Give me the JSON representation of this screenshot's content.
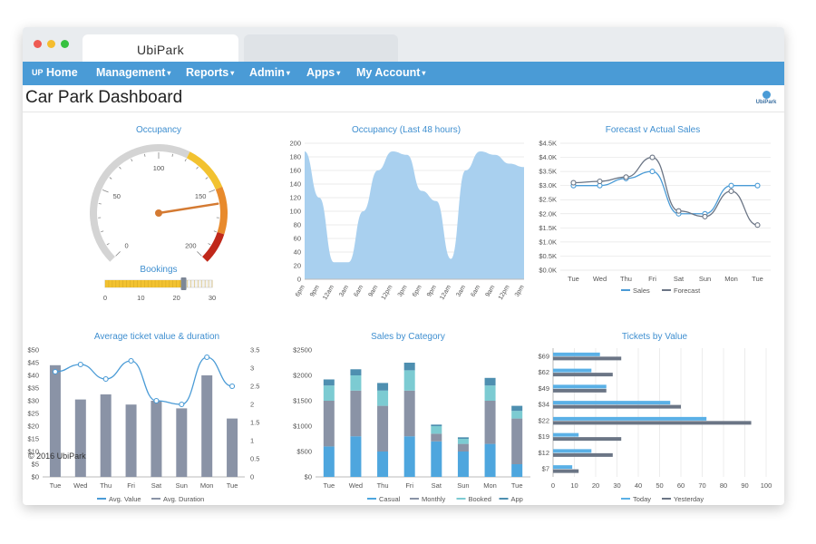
{
  "window": {
    "tab_title": "UbiPark",
    "colors": {
      "close": "#ee5a52",
      "minimize": "#f5bd2f",
      "maximize": "#37c140",
      "nav": "#4a9bd6"
    }
  },
  "nav": {
    "brand_icon": "UP",
    "items": [
      {
        "label": "Home",
        "caret": false
      },
      {
        "label": "Management",
        "caret": true
      },
      {
        "label": "Reports",
        "caret": true
      },
      {
        "label": "Admin",
        "caret": true
      },
      {
        "label": "Apps",
        "caret": true
      },
      {
        "label": "My Account",
        "caret": true
      }
    ]
  },
  "page": {
    "title": "Car Park Dashboard",
    "logo_text": "UbiPark",
    "watermark": "© 2016 UbiPark"
  },
  "chart_data": [
    {
      "type": "gauge",
      "title": "Occupancy",
      "min": 0,
      "max": 200,
      "ticks": [
        "0",
        "50",
        "100",
        "150",
        "200"
      ],
      "value": 160,
      "bands": [
        {
          "from": 0,
          "to": 120,
          "color": "#d4d4d4"
        },
        {
          "from": 120,
          "to": 150,
          "color": "#f2c230"
        },
        {
          "from": 150,
          "to": 180,
          "color": "#e88a2c"
        },
        {
          "from": 180,
          "to": 200,
          "color": "#c0281a"
        }
      ],
      "needle_color": "#d47a32"
    },
    {
      "type": "slider",
      "title": "Bookings",
      "min": 0,
      "max": 30,
      "ticks": [
        "0",
        "10",
        "20",
        "30"
      ],
      "value": 22
    },
    {
      "type": "area",
      "title": "Occupancy (Last 48 hours)",
      "ylim": [
        0,
        200
      ],
      "yticks": [
        "0",
        "20",
        "40",
        "60",
        "80",
        "100",
        "120",
        "140",
        "160",
        "180",
        "200"
      ],
      "x": [
        "6pm",
        "9pm",
        "12am",
        "3am",
        "6am",
        "9am",
        "12pm",
        "3pm",
        "6pm",
        "9pm",
        "12am",
        "3am",
        "6am",
        "9am",
        "12pm",
        "3pm"
      ],
      "values": [
        188,
        120,
        25,
        25,
        100,
        160,
        188,
        183,
        130,
        115,
        30,
        160,
        188,
        183,
        170,
        165
      ],
      "color": "#a9d0ef"
    },
    {
      "type": "line",
      "title": "Forecast v Actual Sales",
      "ylim": [
        0,
        4500
      ],
      "yticks": [
        "$0.0K",
        "$0.5K",
        "$1.0K",
        "$1.5K",
        "$2.0K",
        "$2.5K",
        "$3.0K",
        "$3.5K",
        "$4.0K",
        "$4.5K"
      ],
      "categories": [
        "Tue",
        "Wed",
        "Thu",
        "Fri",
        "Sat",
        "Sun",
        "Mon",
        "Tue"
      ],
      "series": [
        {
          "name": "Sales",
          "values": [
            3000,
            3000,
            3250,
            3500,
            2000,
            2000,
            3000,
            3000
          ],
          "color": "#4a9bd6"
        },
        {
          "name": "Forecast",
          "values": [
            3100,
            3150,
            3300,
            4000,
            2100,
            1900,
            2800,
            1600
          ],
          "color": "#6b7585"
        }
      ]
    },
    {
      "type": "bar-line",
      "title": "Average ticket value & duration",
      "yticks_left": [
        "$0",
        "$5",
        "$10",
        "$15",
        "$20",
        "$25",
        "$30",
        "$35",
        "$40",
        "$45",
        "$50"
      ],
      "yticks_right": [
        "0",
        "0.5",
        "1",
        "1.5",
        "2",
        "2.5",
        "3",
        "3.5"
      ],
      "ylim_left": [
        0,
        50
      ],
      "ylim_right": [
        0,
        3.5
      ],
      "categories": [
        "Tue",
        "Wed",
        "Thu",
        "Fri",
        "Sat",
        "Sun",
        "Mon",
        "Tue"
      ],
      "series": [
        {
          "name": "Avg. Value",
          "axis": "right",
          "kind": "line",
          "values": [
            2.9,
            3.1,
            2.7,
            3.2,
            2.1,
            2.0,
            3.3,
            2.5
          ],
          "color": "#4a9bd6"
        },
        {
          "name": "Avg. Duration",
          "axis": "left",
          "kind": "bar",
          "values": [
            44,
            30.5,
            32.5,
            28.5,
            30,
            27,
            40,
            23
          ],
          "color": "#8a93a6"
        }
      ]
    },
    {
      "type": "stacked-bar",
      "title": "Sales by Category",
      "ylim": [
        0,
        2500
      ],
      "yticks": [
        "$0",
        "$500",
        "$1000",
        "$1500",
        "$2000",
        "$2500"
      ],
      "categories": [
        "Tue",
        "Wed",
        "Thu",
        "Fri",
        "Sat",
        "Sun",
        "Mon",
        "Tue"
      ],
      "series": [
        {
          "name": "Casual",
          "values": [
            600,
            800,
            500,
            800,
            700,
            500,
            650,
            250
          ],
          "color": "#4ea6de"
        },
        {
          "name": "Monthly",
          "values": [
            900,
            900,
            900,
            900,
            150,
            150,
            850,
            900
          ],
          "color": "#8a93a6"
        },
        {
          "name": "Booked",
          "values": [
            300,
            300,
            300,
            400,
            150,
            100,
            300,
            150
          ],
          "color": "#7ccbd2"
        },
        {
          "name": "App",
          "values": [
            120,
            120,
            150,
            150,
            30,
            30,
            150,
            100
          ],
          "color": "#4e8fb0"
        }
      ]
    },
    {
      "type": "horizontal-bar",
      "title": "Tickets by Value",
      "xlim": [
        0,
        100
      ],
      "xticks": [
        "0",
        "10",
        "20",
        "30",
        "40",
        "50",
        "60",
        "70",
        "80",
        "90",
        "100"
      ],
      "categories": [
        "$69",
        "$62",
        "$49",
        "$34",
        "$22",
        "$19",
        "$12",
        "$7"
      ],
      "series": [
        {
          "name": "Today",
          "values": [
            22,
            18,
            25,
            55,
            72,
            12,
            18,
            9
          ],
          "color": "#5ab0e6"
        },
        {
          "name": "Yesterday",
          "values": [
            32,
            28,
            25,
            60,
            93,
            32,
            28,
            12
          ],
          "color": "#6b7585"
        }
      ]
    }
  ]
}
